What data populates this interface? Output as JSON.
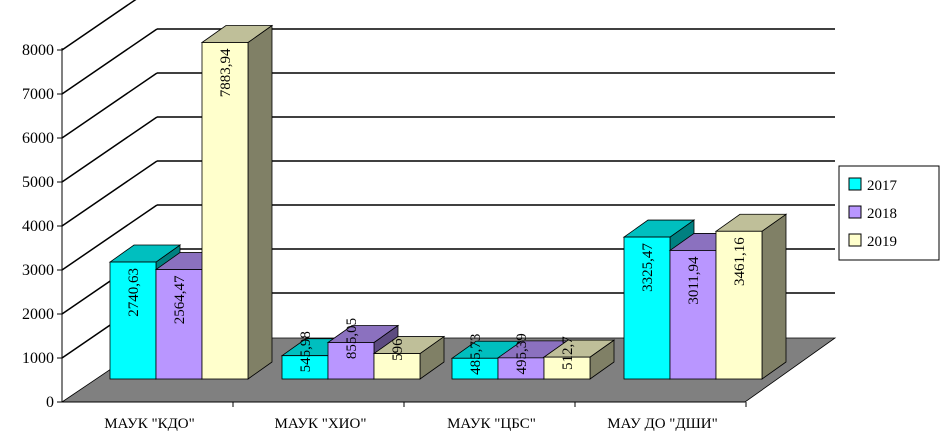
{
  "chart_data": {
    "type": "bar",
    "title": "",
    "xlabel": "",
    "ylabel": "",
    "ylim": [
      0,
      8000
    ],
    "yticks": [
      0,
      1000,
      2000,
      3000,
      4000,
      5000,
      6000,
      7000,
      8000
    ],
    "categories": [
      "МАУК \"КДО\"",
      "МАУК \"ХИО\"",
      "МАУК \"ЦБС\"",
      "МАУ ДО \"ДШИ\""
    ],
    "series": [
      {
        "name": "2017",
        "values": [
          2740.63,
          545.98,
          485.73,
          3325.47
        ],
        "labels": [
          "2740,63",
          "545,98",
          "485,73",
          "3325,47"
        ],
        "color": "#00FFFF"
      },
      {
        "name": "2018",
        "values": [
          2564.47,
          855.05,
          495.39,
          3011.94
        ],
        "labels": [
          "2564,47",
          "855,05",
          "495,39",
          "3011,94"
        ],
        "color": "#B996FF"
      },
      {
        "name": "2019",
        "values": [
          7883.94,
          596,
          512.7,
          3461.16
        ],
        "labels": [
          "7883,94",
          "596",
          "512,7",
          "3461,16"
        ],
        "color": "#FFFFCC"
      }
    ],
    "floor_color": "#808080",
    "grid": true,
    "legend_position": "right",
    "style": "3d-bar"
  }
}
